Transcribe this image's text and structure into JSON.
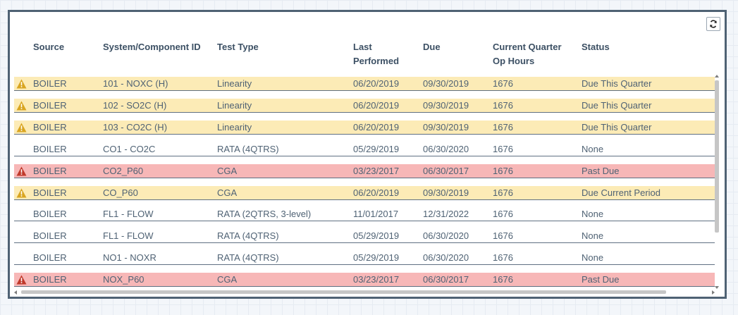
{
  "toolbar": {
    "refresh_icon": "refresh-icon"
  },
  "columns": {
    "source": "Source",
    "system": "System/Component ID",
    "test_type": "Test Type",
    "last_performed_1": "Last",
    "last_performed_2": "Performed",
    "due": "Due",
    "op_hours_1": "Current Quarter",
    "op_hours_2": "Op Hours",
    "status": "Status"
  },
  "colors": {
    "due_row": "#fcebb6",
    "past_due_row": "#f7b7b7",
    "warning_icon": "#d9a520",
    "alert_icon": "#c0392b"
  },
  "rows": [
    {
      "source": "BOILER",
      "system": "101 - NOXC (H)",
      "test_type": "Linearity",
      "last": "06/20/2019",
      "due": "09/30/2019",
      "hours": "1676",
      "status": "Due This Quarter",
      "level": "due",
      "icon": "warning-icon"
    },
    {
      "source": "BOILER",
      "system": "102 - SO2C (H)",
      "test_type": "Linearity",
      "last": "06/20/2019",
      "due": "09/30/2019",
      "hours": "1676",
      "status": "Due This Quarter",
      "level": "due",
      "icon": "warning-icon"
    },
    {
      "source": "BOILER",
      "system": "103 - CO2C (H)",
      "test_type": "Linearity",
      "last": "06/20/2019",
      "due": "09/30/2019",
      "hours": "1676",
      "status": "Due This Quarter",
      "level": "due",
      "icon": "warning-icon"
    },
    {
      "source": "BOILER",
      "system": "CO1 - CO2C",
      "test_type": "RATA (4QTRS)",
      "last": "05/29/2019",
      "due": "06/30/2020",
      "hours": "1676",
      "status": "None",
      "level": "none",
      "icon": ""
    },
    {
      "source": "BOILER",
      "system": "CO2_P60",
      "test_type": "CGA",
      "last": "03/23/2017",
      "due": "06/30/2017",
      "hours": "1676",
      "status": "Past Due",
      "level": "past",
      "icon": "alert-icon"
    },
    {
      "source": "BOILER",
      "system": "CO_P60",
      "test_type": "CGA",
      "last": "06/20/2019",
      "due": "09/30/2019",
      "hours": "1676",
      "status": "Due Current Period",
      "level": "due",
      "icon": "warning-icon"
    },
    {
      "source": "BOILER",
      "system": "FL1 - FLOW",
      "test_type": "RATA (2QTRS, 3-level)",
      "last": "11/01/2017",
      "due": "12/31/2022",
      "hours": "1676",
      "status": "None",
      "level": "none",
      "icon": ""
    },
    {
      "source": "BOILER",
      "system": "FL1 - FLOW",
      "test_type": "RATA (4QTRS)",
      "last": "05/29/2019",
      "due": "06/30/2020",
      "hours": "1676",
      "status": "None",
      "level": "none",
      "icon": ""
    },
    {
      "source": "BOILER",
      "system": "NO1 - NOXR",
      "test_type": "RATA (4QTRS)",
      "last": "05/29/2019",
      "due": "06/30/2020",
      "hours": "1676",
      "status": "None",
      "level": "none",
      "icon": ""
    },
    {
      "source": "BOILER",
      "system": "NOX_P60",
      "test_type": "CGA",
      "last": "03/23/2017",
      "due": "06/30/2017",
      "hours": "1676",
      "status": "Past Due",
      "level": "past",
      "icon": "alert-icon"
    }
  ]
}
